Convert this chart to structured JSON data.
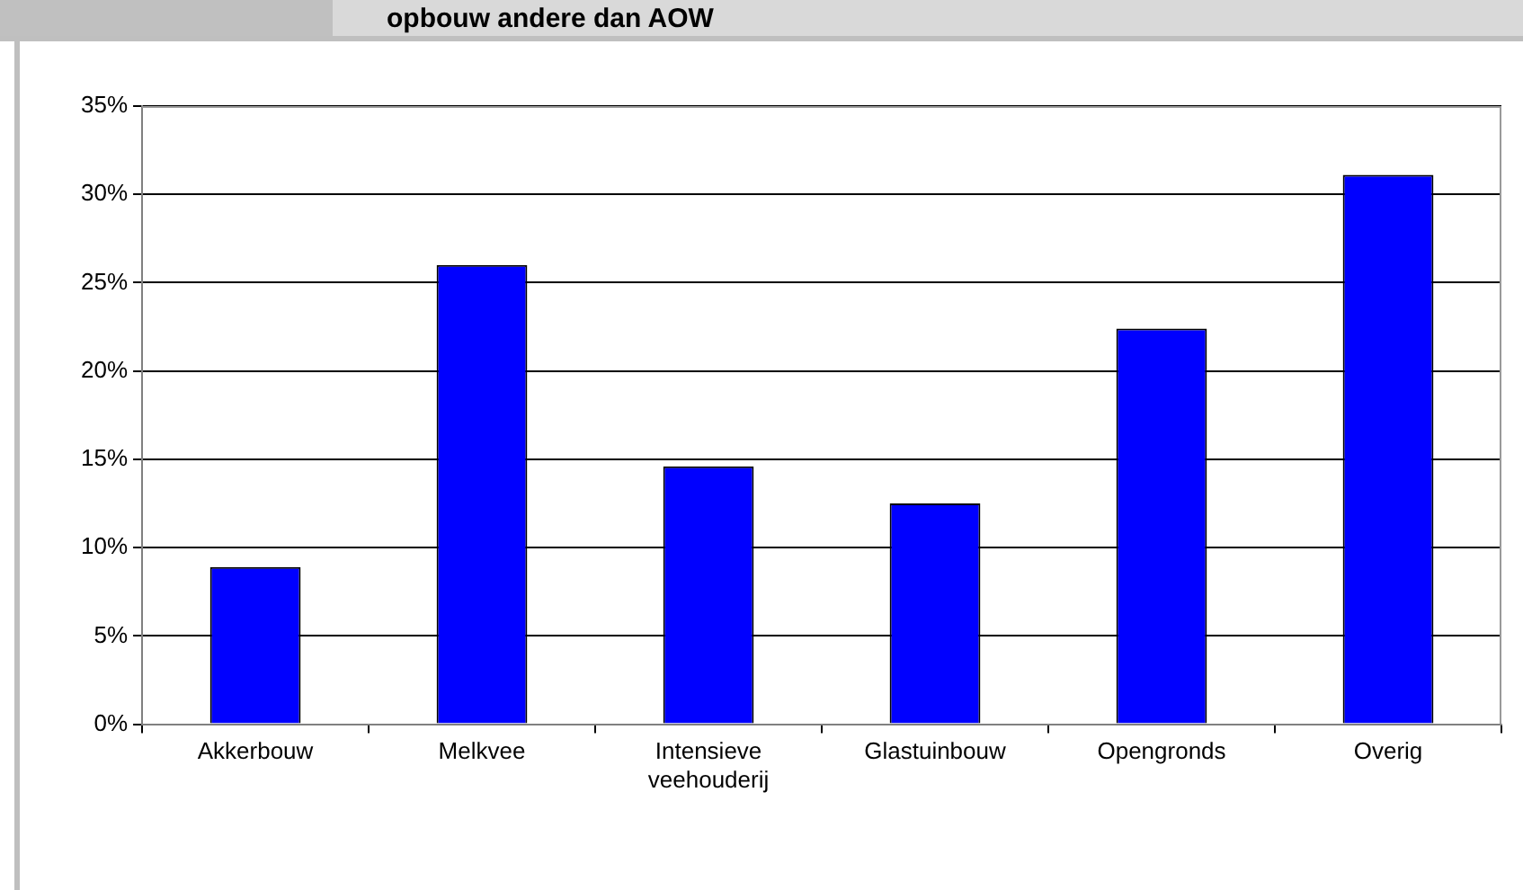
{
  "chart_data": {
    "type": "bar",
    "title": "opbouw andere dan AOW",
    "categories": [
      "Akkerbouw",
      "Melkvee",
      "Intensieve veehouderij",
      "Glastuinbouw",
      "Opengronds",
      "Overig"
    ],
    "values": [
      8.9,
      26.0,
      14.6,
      12.5,
      22.4,
      31.1
    ],
    "color": "#0000ff",
    "ylim": [
      0,
      35
    ],
    "yticks": [
      {
        "value": 0,
        "label": "0%"
      },
      {
        "value": 5,
        "label": "5%"
      },
      {
        "value": 10,
        "label": "10%"
      },
      {
        "value": 15,
        "label": "15%"
      },
      {
        "value": 20,
        "label": "20%"
      },
      {
        "value": 25,
        "label": "25%"
      },
      {
        "value": 30,
        "label": "30%"
      },
      {
        "value": 35,
        "label": "35%"
      }
    ],
    "grid": "y",
    "legend": false
  }
}
